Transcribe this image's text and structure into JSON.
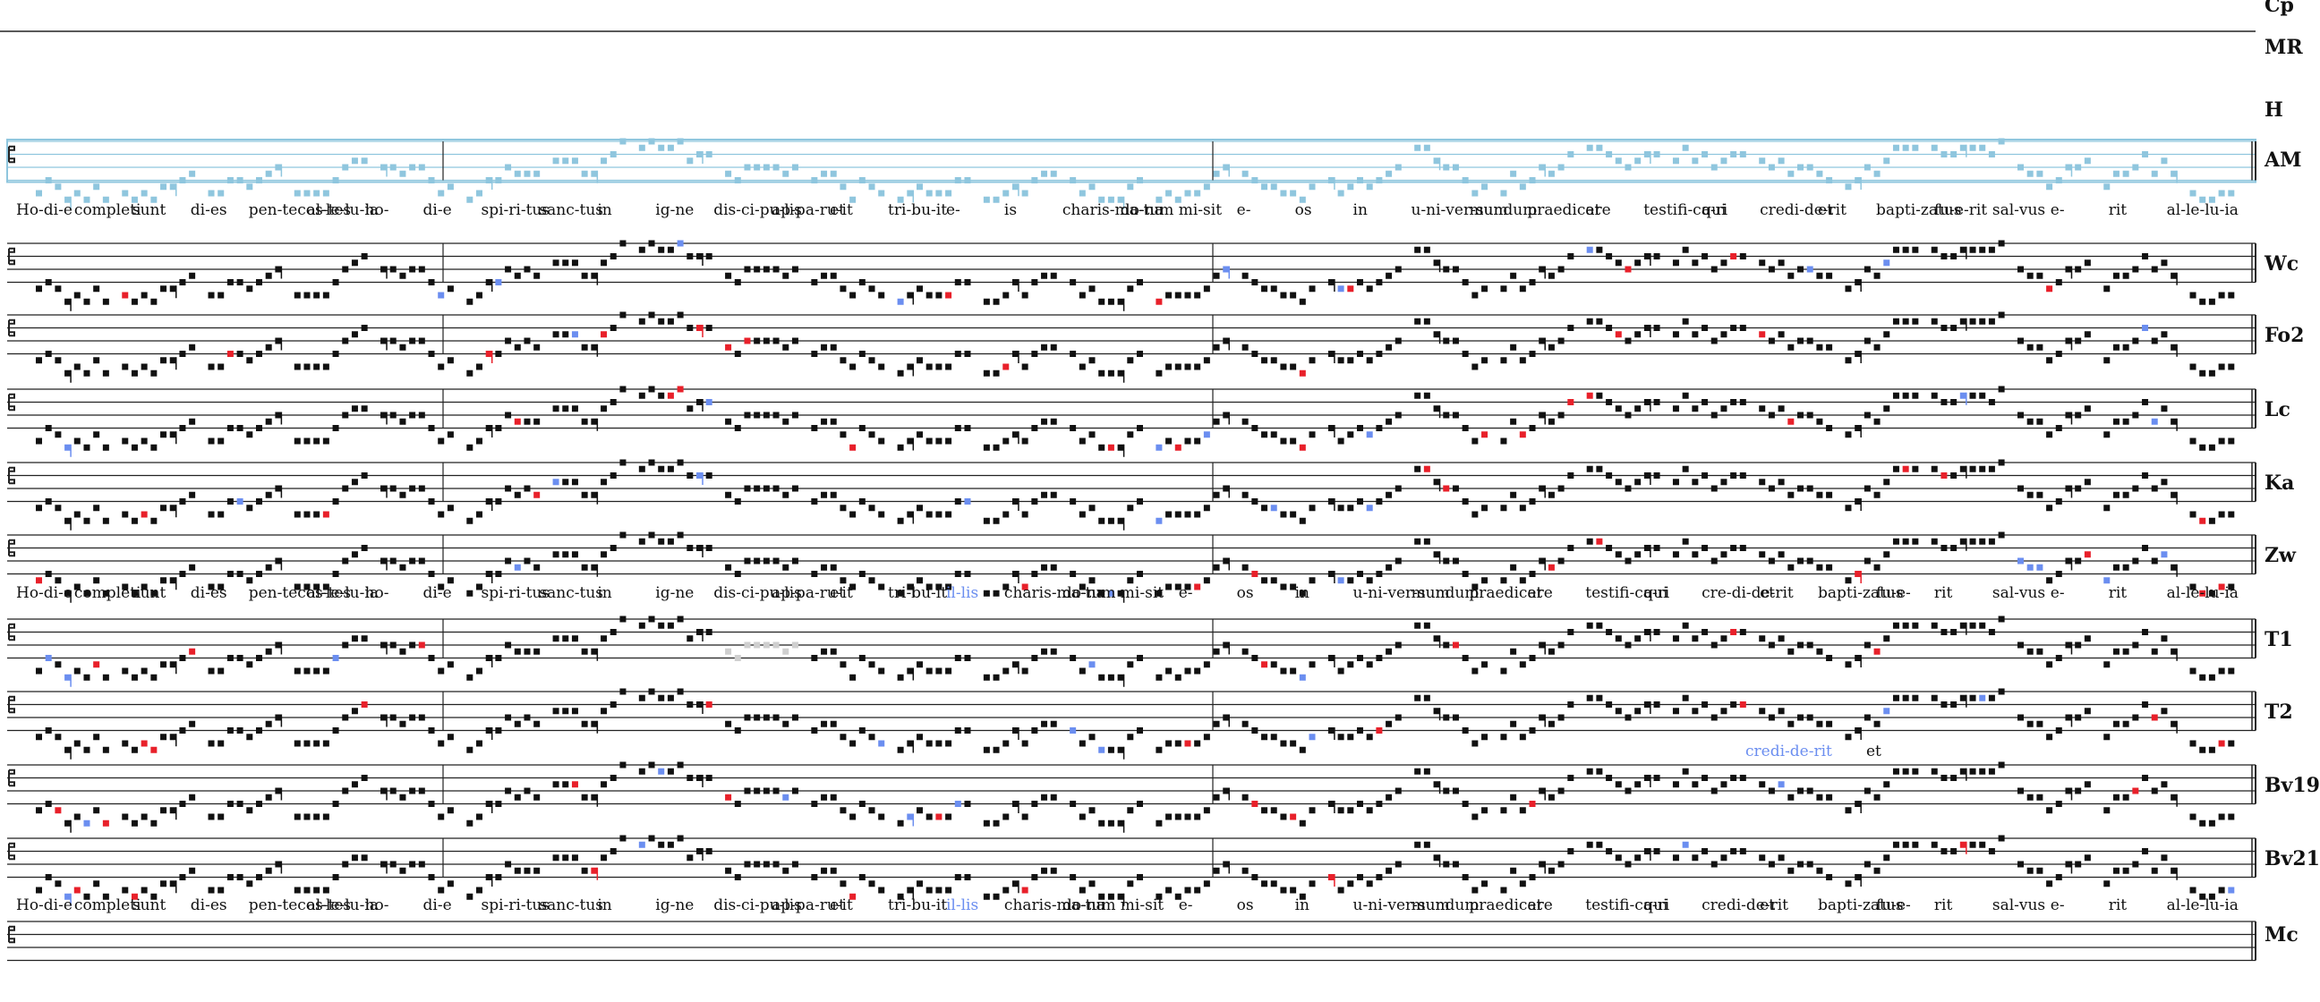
{
  "colors": {
    "note": "#111111",
    "variant_blue": "#6b8ef0",
    "variant_red": "#e8202a",
    "variant_green": "#5a9a5a",
    "variant_grey": "#cfcfcf",
    "highlight_staff": "#8fc6de",
    "staff_line": "#222222"
  },
  "lyrics_main": [
    "Ho-di-e",
    "completi",
    "sunt",
    "di-es",
    "pen-tecos-tes",
    "al-le-lu-ia",
    "ho-",
    "di-e",
    "spi-ri-tus",
    "sanc-tus",
    "in",
    "ig-ne",
    "dis-ci-pu-lis",
    "ap-pa-ru-it",
    "et",
    "tri-bu-it",
    "e-",
    "is",
    "charis-ma-tum",
    "do-na",
    "mi-sit",
    "e-",
    "os",
    "in",
    "u-ni-ver-sum",
    "mundum",
    "praedicare",
    "et",
    "testifi-ca-ri",
    "qui",
    "credi-de-rit",
    "et",
    "bapti-zatus",
    "fu-e-rit",
    "sal-vus",
    "e-",
    "rit",
    "al-le-lu-ia"
  ],
  "lyrics_zw": [
    "Ho-di-e",
    "completi",
    "sunt",
    "di-es",
    "pen-tecos-tes",
    "al-le-lu-ia",
    "ho-",
    "di-e",
    "spi-ri-tus",
    "sanc-tus",
    "in",
    "ig-ne",
    "dis-ci-pu-lis",
    "ap-pa-ru-it",
    "et",
    "tri-bu-it",
    "il-lis",
    "charis-ma-tum",
    "do-na",
    "mi-sit",
    "e-",
    "os",
    "in",
    "u-ni-ver-sum",
    "mundum",
    "praedicare",
    "et",
    "testifi-ca-ri",
    "qui",
    "cre-di-de-rit",
    "et",
    "bapti-zatus",
    "fu-e-",
    "rit",
    "sal-vus",
    "e-",
    "rit",
    "al-le-lu-ia"
  ],
  "lyrics_t2_extra": [
    "credi-de-rit",
    "et"
  ],
  "lyrics_bv21": [
    "Ho-di-e",
    "completi",
    "sunt",
    "di-es",
    "pen-tecos-tes",
    "al-le-lu-ia",
    "ho-",
    "di-e",
    "spi-ri-tus",
    "sanc-tus",
    "in",
    "ig-ne",
    "dis-ci-pu-lis",
    "ap-pa-ru-it",
    "et",
    "tri-bu-it",
    "il-lis",
    "charis-ma-tum",
    "do-na",
    "mi-sit",
    "e-",
    "os",
    "in",
    "u-ni-ver-sum",
    "mundum",
    "praedicare",
    "et",
    "testifi-ca-ri",
    "qui",
    "credi-de-rit",
    "et",
    "bapti-zatus",
    "fu-e-",
    "rit",
    "sal-vus",
    "e-",
    "rit",
    "al-le-lu-ia"
  ],
  "staves": [
    {
      "siglum": "Cp",
      "lines": 1,
      "clef": false,
      "highlight": false,
      "notes": false
    },
    {
      "siglum": "MR",
      "lines": 0,
      "clef": false,
      "highlight": false,
      "notes": false
    },
    {
      "siglum": "H",
      "lines": 0,
      "clef": false,
      "highlight": false,
      "notes": false
    },
    {
      "siglum": "AM",
      "lines": 4,
      "clef": true,
      "highlight": true,
      "notes": true,
      "lyrics": "lyrics_main"
    },
    {
      "siglum": "Wc",
      "lines": 4,
      "clef": true,
      "highlight": false,
      "notes": true
    },
    {
      "siglum": "Fo2",
      "lines": 4,
      "clef": true,
      "highlight": false,
      "notes": true
    },
    {
      "siglum": "Lc",
      "lines": 4,
      "clef": true,
      "highlight": false,
      "notes": true
    },
    {
      "siglum": "Ka",
      "lines": 4,
      "clef": true,
      "highlight": false,
      "notes": true
    },
    {
      "siglum": "Zw",
      "lines": 4,
      "clef": true,
      "highlight": false,
      "notes": true,
      "lyrics": "lyrics_zw"
    },
    {
      "siglum": "T1",
      "lines": 4,
      "clef": true,
      "highlight": false,
      "notes": true
    },
    {
      "siglum": "T2",
      "lines": 4,
      "clef": true,
      "highlight": false,
      "notes": true,
      "lyrics": "lyrics_t2_extra"
    },
    {
      "siglum": "Bv19",
      "lines": 4,
      "clef": true,
      "highlight": false,
      "notes": true
    },
    {
      "siglum": "Bv21",
      "lines": 4,
      "clef": true,
      "highlight": false,
      "notes": true,
      "lyrics": "lyrics_bv21"
    },
    {
      "siglum": "Mc",
      "lines": 4,
      "clef": true,
      "highlight": false,
      "notes": false
    }
  ]
}
